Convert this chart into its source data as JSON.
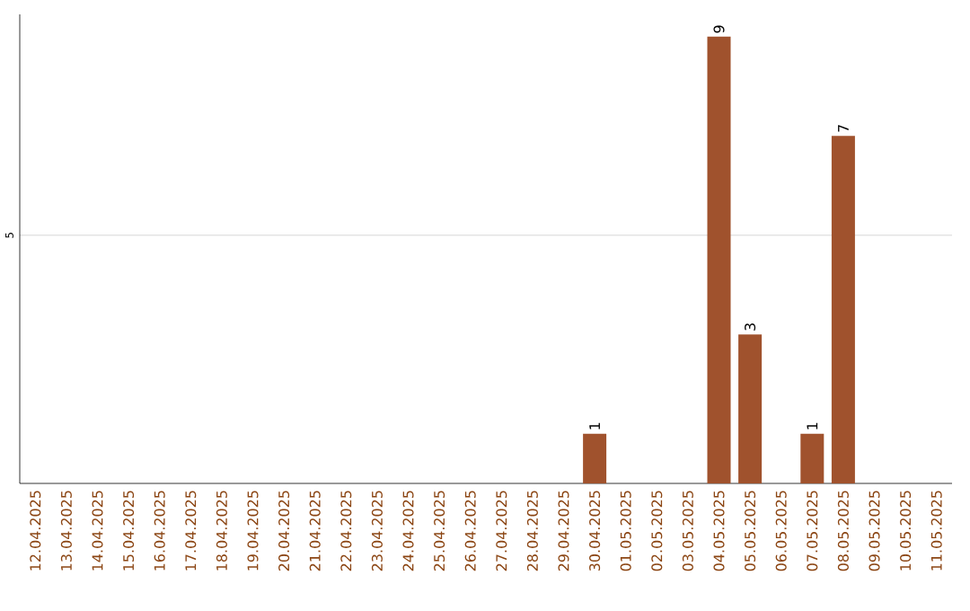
{
  "chart_data": {
    "type": "bar",
    "categories": [
      "12.04.2025",
      "13.04.2025",
      "14.04.2025",
      "15.04.2025",
      "16.04.2025",
      "17.04.2025",
      "18.04.2025",
      "19.04.2025",
      "20.04.2025",
      "21.04.2025",
      "22.04.2025",
      "23.04.2025",
      "24.04.2025",
      "25.04.2025",
      "26.04.2025",
      "27.04.2025",
      "28.04.2025",
      "29.04.2025",
      "30.04.2025",
      "01.05.2025",
      "02.05.2025",
      "03.05.2025",
      "04.05.2025",
      "05.05.2025",
      "06.05.2025",
      "07.05.2025",
      "08.05.2025",
      "09.05.2025",
      "10.05.2025",
      "11.05.2025"
    ],
    "values": [
      null,
      null,
      null,
      null,
      null,
      null,
      null,
      null,
      null,
      null,
      null,
      null,
      null,
      null,
      null,
      null,
      null,
      null,
      1,
      null,
      null,
      null,
      9,
      3,
      null,
      1,
      7,
      null,
      null,
      null
    ],
    "value_labels": [
      null,
      null,
      null,
      null,
      null,
      null,
      null,
      null,
      null,
      null,
      null,
      null,
      null,
      null,
      null,
      null,
      null,
      null,
      "1",
      null,
      null,
      null,
      "9",
      "3",
      null,
      "1",
      "7",
      null,
      null,
      null
    ],
    "color": "#a0522d",
    "ylim": [
      0,
      9.45
    ],
    "yticks": [
      5
    ],
    "grid": "y"
  }
}
